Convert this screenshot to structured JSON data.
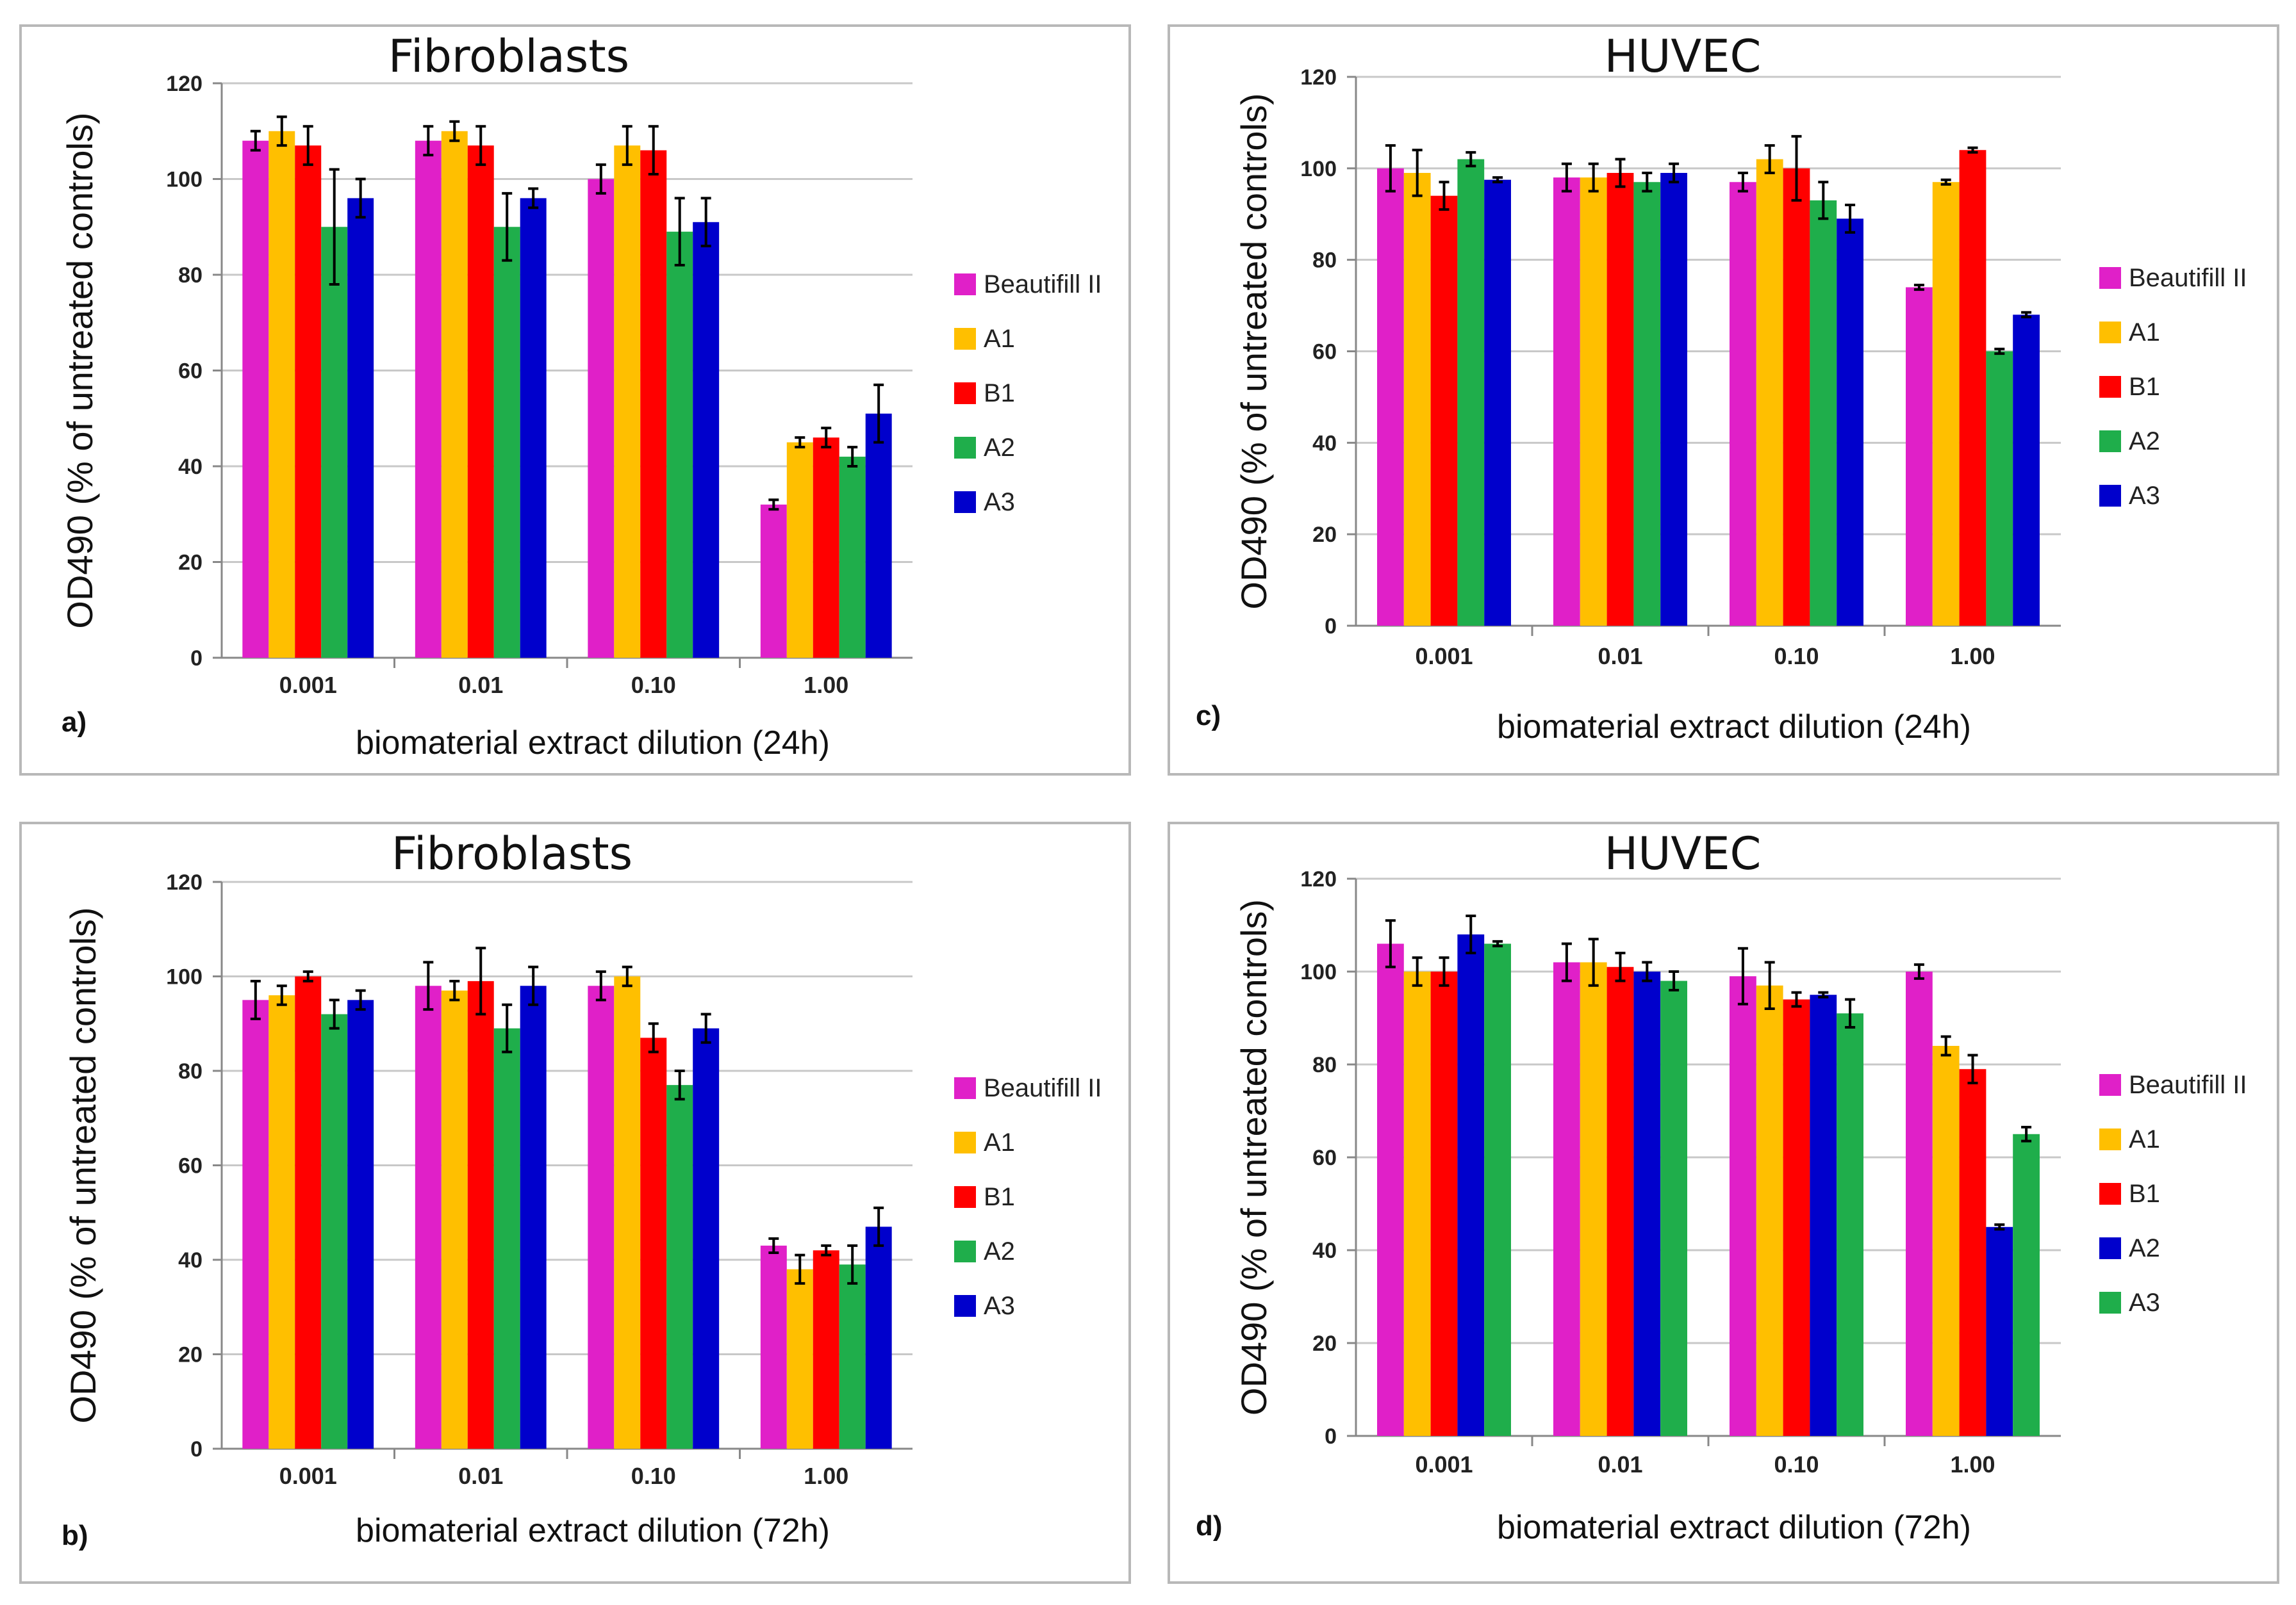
{
  "chart_data": [
    {
      "id": "a",
      "panel_label": "a)",
      "type": "bar",
      "title": "Fibroblasts",
      "xlabel": "biomaterial extract dilution (24h)",
      "ylabel": "OD490 (% of untreated controls)",
      "ylim": [
        0,
        120
      ],
      "yticks": [
        "0",
        "20",
        "40",
        "60",
        "80",
        "100",
        "120"
      ],
      "categories": [
        "0.001",
        "0.01",
        "0.10",
        "1.00"
      ],
      "series": [
        {
          "name": "Beautifill II",
          "color": "#e020c8",
          "values": [
            108,
            108,
            100,
            32
          ],
          "errors": [
            2,
            3,
            3,
            1
          ]
        },
        {
          "name": "A1",
          "color": "#ffbf00",
          "values": [
            110,
            110,
            107,
            45
          ],
          "errors": [
            3,
            2,
            4,
            1
          ]
        },
        {
          "name": "B1",
          "color": "#ff0000",
          "values": [
            107,
            107,
            106,
            46
          ],
          "errors": [
            4,
            4,
            5,
            2
          ]
        },
        {
          "name": "A2",
          "color": "#1fae4b",
          "values": [
            90,
            90,
            89,
            42
          ],
          "errors": [
            12,
            7,
            7,
            2
          ]
        },
        {
          "name": "A3",
          "color": "#0000cc",
          "values": [
            96,
            96,
            91,
            51
          ],
          "errors": [
            4,
            2,
            5,
            6
          ]
        }
      ]
    },
    {
      "id": "c",
      "panel_label": "c)",
      "type": "bar",
      "title": "HUVEC",
      "xlabel": "biomaterial extract dilution (24h)",
      "ylabel": "OD490 (% of untreated controls)",
      "ylim": [
        0,
        120
      ],
      "yticks": [
        "0",
        "20",
        "40",
        "60",
        "80",
        "100",
        "120"
      ],
      "categories": [
        "0.001",
        "0.01",
        "0.10",
        "1.00"
      ],
      "series": [
        {
          "name": "Beautifill II",
          "color": "#e020c8",
          "values": [
            100,
            98,
            97,
            74
          ],
          "errors": [
            5,
            3,
            2,
            0.5
          ]
        },
        {
          "name": "A1",
          "color": "#ffbf00",
          "values": [
            99,
            98,
            102,
            97
          ],
          "errors": [
            5,
            3,
            3,
            0.5
          ]
        },
        {
          "name": "B1",
          "color": "#ff0000",
          "values": [
            94,
            99,
            100,
            104
          ],
          "errors": [
            3,
            3,
            7,
            0.5
          ]
        },
        {
          "name": "A2",
          "color": "#1fae4b",
          "values": [
            102,
            97,
            93,
            60
          ],
          "errors": [
            1.5,
            2,
            4,
            0.5
          ]
        },
        {
          "name": "A3",
          "color": "#0000cc",
          "values": [
            97.5,
            99,
            89,
            68
          ],
          "errors": [
            0.5,
            2,
            3,
            0.5
          ]
        }
      ]
    },
    {
      "id": "b",
      "panel_label": "b)",
      "type": "bar",
      "title": "Fibroblasts",
      "xlabel": "biomaterial extract dilution (72h)",
      "ylabel": "OD490 (% of untreated controls)",
      "ylim": [
        0,
        120
      ],
      "yticks": [
        "0",
        "20",
        "40",
        "60",
        "80",
        "100",
        "120"
      ],
      "categories": [
        "0.001",
        "0.01",
        "0.10",
        "1.00"
      ],
      "series": [
        {
          "name": "Beautifill II",
          "color": "#e020c8",
          "values": [
            95,
            98,
            98,
            43
          ],
          "errors": [
            4,
            5,
            3,
            1.5
          ]
        },
        {
          "name": "A1",
          "color": "#ffbf00",
          "values": [
            96,
            97,
            100,
            38
          ],
          "errors": [
            2,
            2,
            2,
            3
          ]
        },
        {
          "name": "B1",
          "color": "#ff0000",
          "values": [
            100,
            99,
            87,
            42
          ],
          "errors": [
            1,
            7,
            3,
            1
          ]
        },
        {
          "name": "A2",
          "color": "#1fae4b",
          "values": [
            92,
            89,
            77,
            39
          ],
          "errors": [
            3,
            5,
            3,
            4
          ]
        },
        {
          "name": "A3",
          "color": "#0000cc",
          "values": [
            95,
            98,
            89,
            47
          ],
          "errors": [
            2,
            4,
            3,
            4
          ]
        }
      ]
    },
    {
      "id": "d",
      "panel_label": "d)",
      "type": "bar",
      "title": "HUVEC",
      "xlabel": "biomaterial extract dilution (72h)",
      "ylabel": "OD490 (% of untreated controls)",
      "ylim": [
        0,
        120
      ],
      "yticks": [
        "0",
        "20",
        "40",
        "60",
        "80",
        "100",
        "120"
      ],
      "categories": [
        "0.001",
        "0.01",
        "0.10",
        "1.00"
      ],
      "series": [
        {
          "name": "Beautifill II",
          "color": "#e020c8",
          "values": [
            106,
            102,
            99,
            100
          ],
          "errors": [
            5,
            4,
            6,
            1.5
          ]
        },
        {
          "name": "A1",
          "color": "#ffbf00",
          "values": [
            100,
            102,
            97,
            84
          ],
          "errors": [
            3,
            5,
            5,
            2
          ]
        },
        {
          "name": "B1",
          "color": "#ff0000",
          "values": [
            100,
            101,
            94,
            79
          ],
          "errors": [
            3,
            3,
            1.5,
            3
          ]
        },
        {
          "name": "A2",
          "color": "#0000cc",
          "values": [
            108,
            100,
            95,
            45
          ],
          "errors": [
            4,
            2,
            0.5,
            0.5
          ]
        },
        {
          "name": "A3",
          "color": "#1fae4b",
          "values": [
            106,
            98,
            91,
            65
          ],
          "errors": [
            0.5,
            2,
            3,
            1.5
          ]
        }
      ]
    }
  ]
}
